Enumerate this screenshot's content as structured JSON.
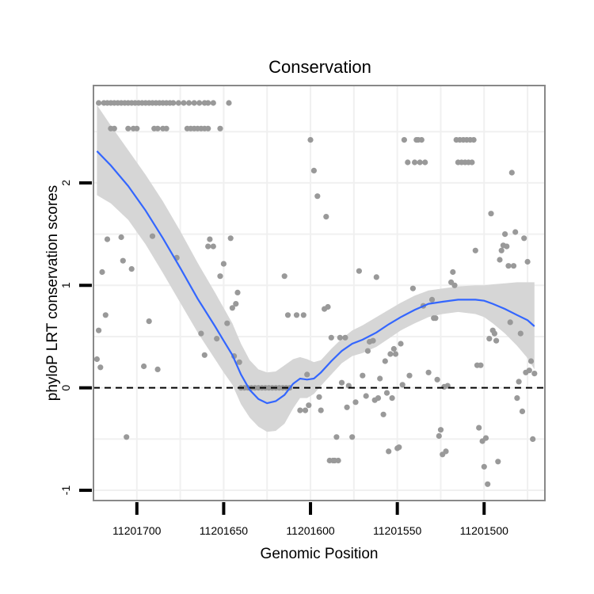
{
  "chart_data": {
    "type": "scatter",
    "title": "Conservation",
    "xlabel": "Genomic Position",
    "ylabel": "phyloP LRT conservation scores",
    "x_reversed": true,
    "xlim": [
      11201725,
      11201465
    ],
    "ylim": [
      -1.1,
      2.95
    ],
    "xticks": [
      {
        "value": 11201700,
        "label": "11201700"
      },
      {
        "value": 11201650,
        "label": "11201650"
      },
      {
        "value": 11201600,
        "label": "11201600"
      },
      {
        "value": 11201550,
        "label": "11201550"
      },
      {
        "value": 11201500,
        "label": "11201500"
      }
    ],
    "yticks": [
      {
        "value": -1,
        "label": "-1"
      },
      {
        "value": 0,
        "label": "0"
      },
      {
        "value": 1,
        "label": "1"
      },
      {
        "value": 2,
        "label": "2"
      }
    ],
    "grid": true,
    "reference_line": {
      "y": 0,
      "style": "dashed"
    },
    "colors": {
      "points": "#999999",
      "smooth_line": "#3366ff",
      "ribbon": "#d6d6d6",
      "grid": "#f0f0f0",
      "panel_border": "#888888",
      "reference_line": "#000000"
    },
    "points": [
      [
        11201722,
        2.78
      ],
      [
        11201719,
        2.78
      ],
      [
        11201717,
        2.78
      ],
      [
        11201715,
        2.78
      ],
      [
        11201713,
        2.78
      ],
      [
        11201711,
        2.78
      ],
      [
        11201709,
        2.78
      ],
      [
        11201707,
        2.78
      ],
      [
        11201705,
        2.78
      ],
      [
        11201703,
        2.78
      ],
      [
        11201701,
        2.78
      ],
      [
        11201699,
        2.78
      ],
      [
        11201697,
        2.78
      ],
      [
        11201695,
        2.78
      ],
      [
        11201693,
        2.78
      ],
      [
        11201691,
        2.78
      ],
      [
        11201689,
        2.78
      ],
      [
        11201687,
        2.78
      ],
      [
        11201685,
        2.78
      ],
      [
        11201683,
        2.78
      ],
      [
        11201681,
        2.78
      ],
      [
        11201679,
        2.78
      ],
      [
        11201676,
        2.78
      ],
      [
        11201673,
        2.78
      ],
      [
        11201670,
        2.78
      ],
      [
        11201667,
        2.78
      ],
      [
        11201664,
        2.78
      ],
      [
        11201661,
        2.78
      ],
      [
        11201659,
        2.78
      ],
      [
        11201656,
        2.78
      ],
      [
        11201647,
        2.78
      ],
      [
        11201715,
        2.53
      ],
      [
        11201713,
        2.53
      ],
      [
        11201705,
        2.53
      ],
      [
        11201702,
        2.53
      ],
      [
        11201700,
        2.53
      ],
      [
        11201690,
        2.53
      ],
      [
        11201688,
        2.53
      ],
      [
        11201685,
        2.53
      ],
      [
        11201683,
        2.53
      ],
      [
        11201671,
        2.53
      ],
      [
        11201669,
        2.53
      ],
      [
        11201667,
        2.53
      ],
      [
        11201665,
        2.53
      ],
      [
        11201663,
        2.53
      ],
      [
        11201661,
        2.53
      ],
      [
        11201659,
        2.53
      ],
      [
        11201652,
        2.53
      ],
      [
        11201723,
        0.28
      ],
      [
        11201722,
        0.56
      ],
      [
        11201721,
        0.2
      ],
      [
        11201720,
        1.13
      ],
      [
        11201718,
        0.71
      ],
      [
        11201717,
        1.45
      ],
      [
        11201709,
        1.47
      ],
      [
        11201708,
        1.24
      ],
      [
        11201706,
        -0.48
      ],
      [
        11201703,
        1.16
      ],
      [
        11201696,
        0.21
      ],
      [
        11201693,
        0.65
      ],
      [
        11201691,
        1.48
      ],
      [
        11201688,
        0.18
      ],
      [
        11201677,
        1.27
      ],
      [
        11201663,
        0.53
      ],
      [
        11201661,
        0.32
      ],
      [
        11201659,
        1.38
      ],
      [
        11201658,
        1.45
      ],
      [
        11201656,
        1.38
      ],
      [
        11201654,
        0.48
      ],
      [
        11201652,
        1.09
      ],
      [
        11201650,
        1.21
      ],
      [
        11201648,
        0.63
      ],
      [
        11201646,
        1.46
      ],
      [
        11201645,
        0.78
      ],
      [
        11201644,
        0.31
      ],
      [
        11201643,
        0.82
      ],
      [
        11201642,
        0.93
      ],
      [
        11201641,
        0.25
      ],
      [
        11201640,
        0.0
      ],
      [
        11201638,
        0.0
      ],
      [
        11201636,
        0.0
      ],
      [
        11201634,
        0.0
      ],
      [
        11201632,
        0.0
      ],
      [
        11201630,
        0.0
      ],
      [
        11201628,
        0.0
      ],
      [
        11201626,
        0.0
      ],
      [
        11201624,
        0.0
      ],
      [
        11201622,
        0.0
      ],
      [
        11201620,
        0.0
      ],
      [
        11201618,
        0.0
      ],
      [
        11201616,
        0.0
      ],
      [
        11201614,
        0.0
      ],
      [
        11201612,
        0.0
      ],
      [
        11201615,
        1.09
      ],
      [
        11201613,
        0.71
      ],
      [
        11201608,
        0.71
      ],
      [
        11201606,
        -0.22
      ],
      [
        11201604,
        0.71
      ],
      [
        11201603,
        -0.22
      ],
      [
        11201602,
        0.13
      ],
      [
        11201601,
        -0.17
      ],
      [
        11201600,
        2.42
      ],
      [
        11201598,
        2.12
      ],
      [
        11201596,
        1.87
      ],
      [
        11201595,
        -0.09
      ],
      [
        11201594,
        -0.22
      ],
      [
        11201592,
        0.77
      ],
      [
        11201591,
        1.67
      ],
      [
        11201590,
        0.79
      ],
      [
        11201589,
        -0.71
      ],
      [
        11201588,
        0.49
      ],
      [
        11201587,
        -0.71
      ],
      [
        11201586,
        -0.71
      ],
      [
        11201585,
        -0.48
      ],
      [
        11201584,
        -0.71
      ],
      [
        11201583,
        0.49
      ],
      [
        11201582,
        0.05
      ],
      [
        11201580,
        0.49
      ],
      [
        11201579,
        -0.19
      ],
      [
        11201578,
        0.02
      ],
      [
        11201576,
        -0.48
      ],
      [
        11201574,
        -0.14
      ],
      [
        11201572,
        1.14
      ],
      [
        11201570,
        0.12
      ],
      [
        11201568,
        -0.08
      ],
      [
        11201567,
        0.36
      ],
      [
        11201566,
        0.45
      ],
      [
        11201564,
        0.46
      ],
      [
        11201563,
        -0.12
      ],
      [
        11201562,
        1.08
      ],
      [
        11201561,
        -0.1
      ],
      [
        11201560,
        0.09
      ],
      [
        11201558,
        -0.26
      ],
      [
        11201557,
        0.26
      ],
      [
        11201556,
        -0.05
      ],
      [
        11201555,
        -0.62
      ],
      [
        11201554,
        0.33
      ],
      [
        11201553,
        -0.1
      ],
      [
        11201552,
        0.38
      ],
      [
        11201551,
        0.33
      ],
      [
        11201550,
        -0.59
      ],
      [
        11201549,
        -0.58
      ],
      [
        11201548,
        0.43
      ],
      [
        11201547,
        0.03
      ],
      [
        11201546,
        2.42
      ],
      [
        11201544,
        2.2
      ],
      [
        11201543,
        0.12
      ],
      [
        11201541,
        0.97
      ],
      [
        11201540,
        2.2
      ],
      [
        11201539,
        2.42
      ],
      [
        11201538,
        2.42
      ],
      [
        11201537,
        2.2
      ],
      [
        11201536,
        2.42
      ],
      [
        11201535,
        0.8
      ],
      [
        11201534,
        2.2
      ],
      [
        11201532,
        0.15
      ],
      [
        11201530,
        0.86
      ],
      [
        11201529,
        0.68
      ],
      [
        11201528,
        0.68
      ],
      [
        11201527,
        0.08
      ],
      [
        11201526,
        -0.47
      ],
      [
        11201525,
        -0.41
      ],
      [
        11201524,
        -0.65
      ],
      [
        11201523,
        0.01
      ],
      [
        11201522,
        -0.62
      ],
      [
        11201521,
        0.02
      ],
      [
        11201519,
        1.03
      ],
      [
        11201518,
        1.13
      ],
      [
        11201517,
        1.0
      ],
      [
        11201516,
        2.42
      ],
      [
        11201515,
        2.2
      ],
      [
        11201514,
        2.42
      ],
      [
        11201513,
        2.2
      ],
      [
        11201512,
        2.42
      ],
      [
        11201511,
        2.2
      ],
      [
        11201510,
        2.42
      ],
      [
        11201509,
        2.2
      ],
      [
        11201508,
        2.42
      ],
      [
        11201507,
        2.2
      ],
      [
        11201506,
        2.42
      ],
      [
        11201505,
        1.34
      ],
      [
        11201504,
        0.22
      ],
      [
        11201503,
        -0.39
      ],
      [
        11201502,
        0.22
      ],
      [
        11201501,
        -0.52
      ],
      [
        11201500,
        -0.77
      ],
      [
        11201499,
        -0.49
      ],
      [
        11201498,
        -0.94
      ],
      [
        11201497,
        0.48
      ],
      [
        11201496,
        1.7
      ],
      [
        11201495,
        0.56
      ],
      [
        11201494,
        0.53
      ],
      [
        11201493,
        0.46
      ],
      [
        11201492,
        -0.72
      ],
      [
        11201491,
        1.25
      ],
      [
        11201490,
        1.34
      ],
      [
        11201489,
        1.39
      ],
      [
        11201488,
        1.5
      ],
      [
        11201487,
        1.38
      ],
      [
        11201486,
        1.19
      ],
      [
        11201485,
        0.64
      ],
      [
        11201484,
        2.1
      ],
      [
        11201483,
        1.19
      ],
      [
        11201482,
        1.52
      ],
      [
        11201481,
        -0.1
      ],
      [
        11201480,
        0.06
      ],
      [
        11201479,
        0.53
      ],
      [
        11201478,
        -0.23
      ],
      [
        11201477,
        1.46
      ],
      [
        11201476,
        0.15
      ],
      [
        11201475,
        1.23
      ],
      [
        11201474,
        0.17
      ],
      [
        11201473,
        0.26
      ],
      [
        11201472,
        -0.5
      ],
      [
        11201471,
        0.14
      ]
    ],
    "smooth": [
      [
        11201723,
        2.31
      ],
      [
        11201715,
        2.17
      ],
      [
        11201705,
        1.97
      ],
      [
        11201695,
        1.73
      ],
      [
        11201685,
        1.46
      ],
      [
        11201675,
        1.17
      ],
      [
        11201665,
        0.87
      ],
      [
        11201655,
        0.6
      ],
      [
        11201650,
        0.46
      ],
      [
        11201645,
        0.32
      ],
      [
        11201640,
        0.13
      ],
      [
        11201635,
        -0.02
      ],
      [
        11201630,
        -0.11
      ],
      [
        11201625,
        -0.15
      ],
      [
        11201620,
        -0.13
      ],
      [
        11201615,
        -0.07
      ],
      [
        11201610,
        0.04
      ],
      [
        11201606,
        0.09
      ],
      [
        11201602,
        0.08
      ],
      [
        11201598,
        0.09
      ],
      [
        11201594,
        0.15
      ],
      [
        11201588,
        0.26
      ],
      [
        11201582,
        0.36
      ],
      [
        11201576,
        0.43
      ],
      [
        11201570,
        0.47
      ],
      [
        11201562,
        0.54
      ],
      [
        11201555,
        0.62
      ],
      [
        11201548,
        0.69
      ],
      [
        11201540,
        0.76
      ],
      [
        11201532,
        0.82
      ],
      [
        11201524,
        0.84
      ],
      [
        11201515,
        0.86
      ],
      [
        11201505,
        0.86
      ],
      [
        11201500,
        0.85
      ],
      [
        11201495,
        0.82
      ],
      [
        11201488,
        0.77
      ],
      [
        11201481,
        0.71
      ],
      [
        11201475,
        0.66
      ],
      [
        11201471,
        0.6
      ]
    ],
    "ribbon_upper": [
      [
        11201723,
        2.76
      ],
      [
        11201715,
        2.56
      ],
      [
        11201705,
        2.32
      ],
      [
        11201695,
        2.08
      ],
      [
        11201685,
        1.82
      ],
      [
        11201675,
        1.53
      ],
      [
        11201665,
        1.22
      ],
      [
        11201655,
        0.93
      ],
      [
        11201650,
        0.78
      ],
      [
        11201645,
        0.63
      ],
      [
        11201640,
        0.43
      ],
      [
        11201635,
        0.27
      ],
      [
        11201630,
        0.18
      ],
      [
        11201625,
        0.15
      ],
      [
        11201620,
        0.16
      ],
      [
        11201615,
        0.22
      ],
      [
        11201610,
        0.28
      ],
      [
        11201606,
        0.3
      ],
      [
        11201602,
        0.28
      ],
      [
        11201598,
        0.25
      ],
      [
        11201594,
        0.27
      ],
      [
        11201588,
        0.38
      ],
      [
        11201582,
        0.48
      ],
      [
        11201576,
        0.56
      ],
      [
        11201570,
        0.61
      ],
      [
        11201562,
        0.69
      ],
      [
        11201555,
        0.76
      ],
      [
        11201548,
        0.83
      ],
      [
        11201540,
        0.9
      ],
      [
        11201532,
        0.95
      ],
      [
        11201524,
        0.97
      ],
      [
        11201515,
        0.99
      ],
      [
        11201505,
        1.0
      ],
      [
        11201500,
        1.0
      ],
      [
        11201495,
        1.01
      ],
      [
        11201488,
        1.02
      ],
      [
        11201481,
        1.03
      ],
      [
        11201475,
        1.03
      ],
      [
        11201471,
        1.03
      ]
    ],
    "ribbon_lower": [
      [
        11201723,
        1.88
      ],
      [
        11201715,
        1.8
      ],
      [
        11201705,
        1.64
      ],
      [
        11201695,
        1.4
      ],
      [
        11201685,
        1.12
      ],
      [
        11201675,
        0.83
      ],
      [
        11201665,
        0.54
      ],
      [
        11201655,
        0.28
      ],
      [
        11201650,
        0.15
      ],
      [
        11201645,
        0.03
      ],
      [
        11201640,
        -0.16
      ],
      [
        11201635,
        -0.29
      ],
      [
        11201630,
        -0.38
      ],
      [
        11201625,
        -0.43
      ],
      [
        11201620,
        -0.42
      ],
      [
        11201615,
        -0.35
      ],
      [
        11201610,
        -0.2
      ],
      [
        11201606,
        -0.1
      ],
      [
        11201602,
        -0.1
      ],
      [
        11201598,
        -0.06
      ],
      [
        11201594,
        0.02
      ],
      [
        11201588,
        0.13
      ],
      [
        11201582,
        0.24
      ],
      [
        11201576,
        0.31
      ],
      [
        11201570,
        0.34
      ],
      [
        11201562,
        0.4
      ],
      [
        11201555,
        0.48
      ],
      [
        11201548,
        0.56
      ],
      [
        11201540,
        0.63
      ],
      [
        11201532,
        0.69
      ],
      [
        11201524,
        0.72
      ],
      [
        11201515,
        0.74
      ],
      [
        11201505,
        0.72
      ],
      [
        11201500,
        0.69
      ],
      [
        11201495,
        0.63
      ],
      [
        11201488,
        0.53
      ],
      [
        11201481,
        0.41
      ],
      [
        11201475,
        0.29
      ],
      [
        11201471,
        0.18
      ]
    ]
  }
}
